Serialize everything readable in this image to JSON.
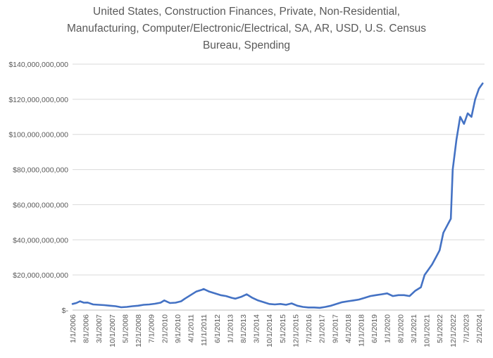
{
  "chart_data": {
    "type": "line",
    "title_lines": [
      "United States, Construction Finances, Private, Non-Residential,",
      "Manufacturing, Computer/Electronic/Electrical,  SA, AR, USD, U.S. Census",
      "Bureau, Spending"
    ],
    "xlabel": "",
    "ylabel": "",
    "ylim": [
      0,
      140000000000
    ],
    "y_ticks": [
      0,
      20000000000,
      40000000000,
      60000000000,
      80000000000,
      100000000000,
      120000000000,
      140000000000
    ],
    "y_tick_labels": [
      "$-",
      "$20,000,000,000",
      "$40,000,000,000",
      "$60,000,000,000",
      "$80,000,000,000",
      "$100,000,000,000",
      "$120,000,000,000",
      "$140,000,000,000"
    ],
    "x_range": [
      "2006-01",
      "2024-05"
    ],
    "x_tick_labels": [
      "1/1/2006",
      "8/1/2006",
      "3/1/2007",
      "10/1/2007",
      "5/1/2008",
      "12/1/2008",
      "7/1/2009",
      "2/1/2010",
      "9/1/2010",
      "4/1/2011",
      "11/1/2011",
      "6/1/2012",
      "1/1/2013",
      "8/1/2013",
      "3/1/2014",
      "10/1/2014",
      "5/1/2015",
      "12/1/2015",
      "7/1/2016",
      "2/1/2017",
      "9/1/2017",
      "4/1/2018",
      "11/1/2018",
      "6/1/2019",
      "1/1/2020",
      "8/1/2020",
      "3/1/2021",
      "10/1/2021",
      "5/1/2022",
      "12/1/2022",
      "7/1/2023",
      "2/1/2024"
    ],
    "grid": true,
    "legend": "none",
    "line_color": "#4472C4",
    "series": [
      {
        "x": [
          "2006-01",
          "2006-03",
          "2006-05",
          "2006-07",
          "2006-09",
          "2006-12",
          "2007-03",
          "2007-06",
          "2007-09",
          "2007-12",
          "2008-03",
          "2008-06",
          "2008-09",
          "2008-12",
          "2009-03",
          "2009-06",
          "2009-09",
          "2009-12",
          "2010-02",
          "2010-05",
          "2010-08",
          "2010-11",
          "2011-01",
          "2011-04",
          "2011-07",
          "2011-10",
          "2011-11",
          "2012-02",
          "2012-05",
          "2012-08",
          "2012-11",
          "2013-02",
          "2013-04",
          "2013-07",
          "2013-10",
          "2014-01",
          "2014-04",
          "2014-07",
          "2014-10",
          "2015-01",
          "2015-04",
          "2015-07",
          "2015-10",
          "2016-01",
          "2016-04",
          "2016-07",
          "2016-10",
          "2017-01",
          "2017-04",
          "2017-07",
          "2017-10",
          "2018-01",
          "2018-04",
          "2018-07",
          "2018-10",
          "2019-01",
          "2019-04",
          "2019-07",
          "2019-10",
          "2020-01",
          "2020-04",
          "2020-07",
          "2020-10",
          "2021-01",
          "2021-04",
          "2021-07",
          "2021-09",
          "2021-11",
          "2022-01",
          "2022-03",
          "2022-05",
          "2022-07",
          "2022-09",
          "2022-11",
          "2022-12",
          "2023-02",
          "2023-04",
          "2023-06",
          "2023-08",
          "2023-10",
          "2023-12",
          "2024-02",
          "2024-04"
        ],
        "y": [
          3500000000,
          4000000000,
          5000000000,
          4200000000,
          4300000000,
          3200000000,
          3000000000,
          2800000000,
          2500000000,
          2200000000,
          1600000000,
          1800000000,
          2200000000,
          2500000000,
          3000000000,
          3200000000,
          3600000000,
          4200000000,
          5500000000,
          4000000000,
          4200000000,
          5000000000,
          6500000000,
          8500000000,
          10500000000,
          11500000000,
          12000000000,
          10500000000,
          9500000000,
          8500000000,
          8000000000,
          7000000000,
          6500000000,
          7500000000,
          9000000000,
          7000000000,
          5500000000,
          4500000000,
          3500000000,
          3200000000,
          3500000000,
          3000000000,
          3800000000,
          2500000000,
          1800000000,
          1500000000,
          1500000000,
          1300000000,
          1800000000,
          2500000000,
          3500000000,
          4500000000,
          5000000000,
          5500000000,
          6000000000,
          7000000000,
          8000000000,
          8500000000,
          9000000000,
          9500000000,
          8000000000,
          8500000000,
          8500000000,
          8000000000,
          11000000000,
          13000000000,
          20000000000,
          23000000000,
          26000000000,
          30000000000,
          34000000000,
          44000000000,
          48000000000,
          52000000000,
          80000000000,
          97000000000,
          110000000000,
          106000000000,
          112000000000,
          110000000000,
          120000000000,
          126000000000,
          129000000000
        ]
      }
    ]
  }
}
